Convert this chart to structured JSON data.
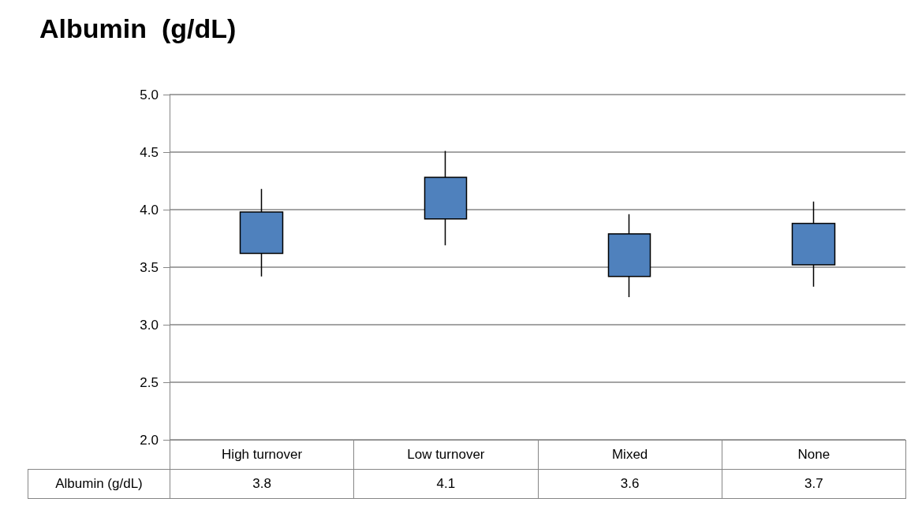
{
  "chart_data": {
    "type": "candlestick",
    "title": "Albumin  (g/dL)",
    "categories": [
      "High turnover",
      "Low turnover",
      "Mixed",
      "None"
    ],
    "series": [
      {
        "name": "Albumin  (g/dL)",
        "color": "#4f81bd",
        "ohlc": [
          [
            3.62,
            4.18,
            3.42,
            3.98
          ],
          [
            3.92,
            4.51,
            3.69,
            4.28
          ],
          [
            3.42,
            3.96,
            3.24,
            3.79
          ],
          [
            3.52,
            4.07,
            3.33,
            3.88
          ]
        ],
        "value_labels": [
          "3.8",
          "4.1",
          "3.6",
          "3.7"
        ]
      }
    ],
    "ylim": [
      2,
      5
    ],
    "yticks": [
      {
        "value": 2,
        "label": "2.0"
      },
      {
        "value": 2.5,
        "label": "2.5"
      },
      {
        "value": 3,
        "label": "3.0"
      },
      {
        "value": 3.5,
        "label": "3.5"
      },
      {
        "value": 4,
        "label": "4.0"
      },
      {
        "value": 4.5,
        "label": "4.5"
      },
      {
        "value": 5,
        "label": "5.0"
      }
    ],
    "grid": "y"
  }
}
